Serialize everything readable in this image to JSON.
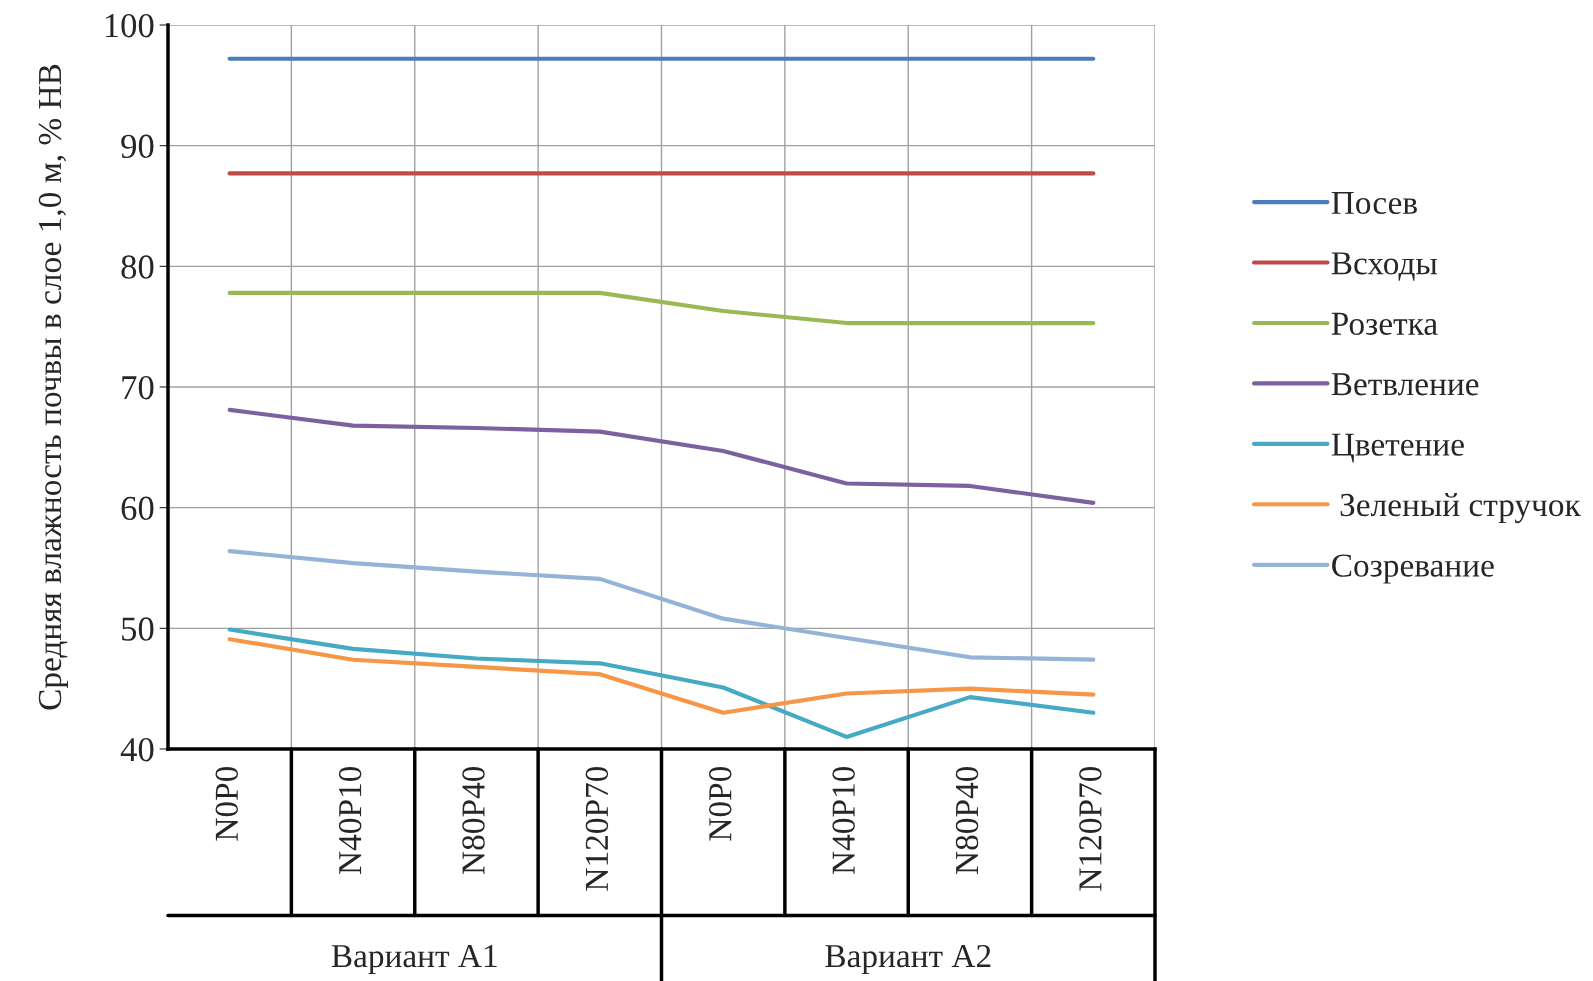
{
  "chart_data": {
    "type": "line",
    "ylabel": "Средняя влажность почвы в слое 1,0 м, % НВ",
    "categories": [
      "N0P0",
      "N40P10",
      "N80P40",
      "N120P70",
      "N0P0",
      "N40P10",
      "N80P40",
      "N120P70"
    ],
    "annotations": [
      "Вариант А1",
      "Вариант А2"
    ],
    "series": [
      {
        "name": "Посев",
        "color": "#4a7ebb",
        "values": [
          97.2,
          97.2,
          97.2,
          97.2,
          97.2,
          97.2,
          97.2,
          97.2
        ]
      },
      {
        "name": "Всходы",
        "color": "#be4b48",
        "values": [
          87.7,
          87.7,
          87.7,
          87.7,
          87.7,
          87.7,
          87.7,
          87.7
        ]
      },
      {
        "name": "Розетка",
        "color": "#98b954",
        "values": [
          77.8,
          77.8,
          77.8,
          77.8,
          76.3,
          75.3,
          75.3,
          75.3
        ]
      },
      {
        "name": "Ветвление",
        "color": "#7d60a0",
        "values": [
          68.1,
          66.8,
          66.6,
          66.3,
          64.7,
          62.0,
          61.8,
          60.4
        ]
      },
      {
        "name": "Цветение",
        "color": "#46aac5",
        "values": [
          49.9,
          48.3,
          47.5,
          47.1,
          45.1,
          41.0,
          44.3,
          43.0
        ]
      },
      {
        "name": " Зеленый стручок",
        "color": "#f79646",
        "values": [
          49.1,
          47.4,
          46.8,
          46.2,
          43.0,
          44.6,
          45.0,
          44.5
        ]
      },
      {
        "name": "Созревание",
        "color": "#95b3d7",
        "values": [
          56.4,
          55.4,
          54.7,
          54.1,
          50.8,
          49.2,
          47.6,
          47.4
        ]
      }
    ],
    "ylim": [
      40,
      100
    ],
    "yticks": [
      40,
      50,
      60,
      70,
      80,
      90,
      100
    ],
    "grid": true,
    "legend": "right",
    "marker": "none",
    "line_style": "solid"
  }
}
